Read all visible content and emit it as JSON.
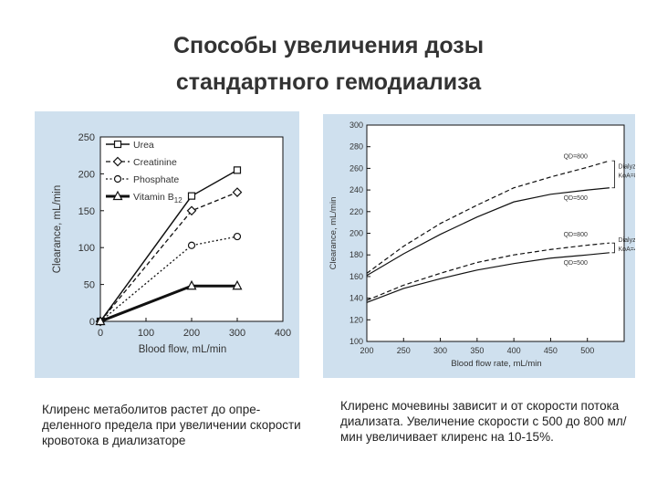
{
  "slide": {
    "title_line1": "Способы увеличения дозы",
    "title_line2": "стандартного гемодиализа"
  },
  "captions": {
    "left": "Клиренс метаболитов растет до опре-деленного предела при   увеличении скорости кровотока в диализаторе",
    "right": "Клиренс мочевины зависит и от скорости потока диализата. Увеличение скорости с 500 до 800 мл/мин увеличивает клиренс на 10-15%."
  },
  "colors": {
    "panel_bg": "#cfe0ee",
    "line": "#111111"
  },
  "chart_data": [
    {
      "type": "line",
      "xlabel": "Blood flow, mL/min",
      "ylabel": "Clearance, mL/min",
      "xlim": [
        0,
        400
      ],
      "ylim": [
        0,
        250
      ],
      "xticks": [
        "0",
        "100",
        "200",
        "300",
        "400"
      ],
      "yticks": [
        "0",
        "50",
        "100",
        "150",
        "200",
        "250"
      ],
      "grid": false,
      "legend_position": "top-left",
      "series": [
        {
          "name": "Urea",
          "marker": "square",
          "dash": "solid",
          "width": 1.5,
          "x": [
            0,
            200,
            300
          ],
          "y": [
            0,
            170,
            205
          ]
        },
        {
          "name": "Creatinine",
          "marker": "diamond",
          "dash": "dashed",
          "width": 1.3,
          "x": [
            0,
            200,
            300
          ],
          "y": [
            0,
            150,
            175
          ]
        },
        {
          "name": "Phosphate",
          "marker": "circle",
          "dash": "dotted",
          "width": 1.3,
          "x": [
            0,
            200,
            300
          ],
          "y": [
            0,
            103,
            115
          ]
        },
        {
          "name": "Vitamin B",
          "name_sub": "12",
          "marker": "triangle",
          "dash": "solid",
          "width": 3,
          "x": [
            0,
            200,
            300
          ],
          "y": [
            0,
            48,
            48
          ]
        }
      ]
    },
    {
      "type": "line",
      "xlabel": "Blood flow rate, mL/min",
      "ylabel": "Clearance, mL/min",
      "xlim": [
        200,
        550
      ],
      "ylim": [
        100,
        300
      ],
      "xticks": [
        "200",
        "250",
        "300",
        "350",
        "400",
        "450",
        "500"
      ],
      "yticks": [
        "100",
        "120",
        "140",
        "160",
        "180",
        "200",
        "220",
        "240",
        "260",
        "280",
        "300"
      ],
      "grid": false,
      "series": [
        {
          "label": "QD=800",
          "group": "KoA=800",
          "dash": "dashed",
          "x": [
            200,
            250,
            300,
            350,
            400,
            450,
            500,
            530
          ],
          "y": [
            163,
            188,
            209,
            226,
            242,
            252,
            261,
            267
          ]
        },
        {
          "label": "QD=500",
          "group": "KoA=800",
          "dash": "solid",
          "x": [
            200,
            250,
            300,
            350,
            400,
            450,
            500,
            530
          ],
          "y": [
            161,
            181,
            199,
            215,
            229,
            236,
            240,
            242
          ]
        },
        {
          "label": "QD=800",
          "group": "KoA=400",
          "dash": "dashed",
          "x": [
            200,
            250,
            300,
            350,
            400,
            450,
            500,
            530
          ],
          "y": [
            138,
            152,
            163,
            173,
            180,
            185,
            189,
            191
          ]
        },
        {
          "label": "QD=500",
          "group": "KoA=400",
          "dash": "solid",
          "x": [
            200,
            250,
            300,
            350,
            400,
            450,
            500,
            530
          ],
          "y": [
            136,
            149,
            158,
            166,
            172,
            177,
            180,
            182
          ]
        }
      ],
      "annotations": {
        "qd800": "QD=800",
        "qd500": "QD=500",
        "dialyzer": "Dialyzer",
        "koa800": "KoA=800",
        "koa400": "KoA=400"
      }
    }
  ]
}
